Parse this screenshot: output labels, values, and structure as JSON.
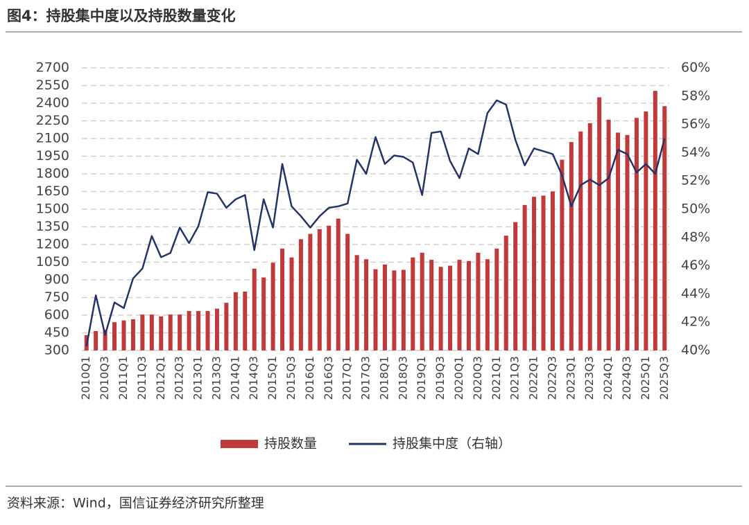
{
  "chart_data": {
    "type": "bar_line",
    "title": "图4：持股集中度以及持股数量变化",
    "source": "资料来源：Wind，国信证券经济研究所整理",
    "categories": [
      "2010Q1",
      null,
      "2010Q3",
      null,
      "2011Q1",
      null,
      "2011Q3",
      null,
      "2012Q1",
      null,
      "2012Q3",
      null,
      "2013Q1",
      null,
      "2013Q3",
      null,
      "2014Q1",
      null,
      "2014Q3",
      null,
      "2015Q1",
      null,
      "2015Q3",
      null,
      "2016Q1",
      null,
      "2016Q3",
      null,
      "2017Q1",
      null,
      "2017Q3",
      null,
      "2018Q1",
      null,
      "2018Q3",
      null,
      "2019Q1",
      null,
      "2019Q3",
      null,
      "2020Q1",
      null,
      "2020Q3",
      null,
      "2021Q1",
      null,
      "2021Q3",
      null,
      "2022Q1",
      null,
      "2022Q3",
      null,
      "2023Q1",
      null,
      "2023Q3",
      null,
      "2024Q1",
      null,
      "2024Q3",
      null,
      "2025Q1",
      null,
      "2025Q3"
    ],
    "series": [
      {
        "name": "持股数量",
        "type": "bar",
        "color": "#c0393b",
        "values": [
          430,
          465,
          475,
          540,
          555,
          565,
          605,
          605,
          590,
          605,
          605,
          635,
          635,
          635,
          655,
          705,
          795,
          800,
          995,
          920,
          1045,
          1165,
          1090,
          1245,
          1290,
          1330,
          1360,
          1420,
          1290,
          1110,
          1075,
          990,
          1030,
          980,
          985,
          1090,
          1130,
          1070,
          1010,
          1020,
          1070,
          1060,
          1130,
          1075,
          1165,
          1275,
          1390,
          1535,
          1605,
          1615,
          1650,
          1920,
          2070,
          2160,
          2230,
          2450,
          2260,
          2150,
          2130,
          2275,
          2330,
          2505,
          2375
        ]
      },
      {
        "name": "持股集中度（右轴）",
        "type": "line",
        "axis": "y2",
        "color": "#253468",
        "values": [
          40.3,
          43.9,
          41.1,
          43.4,
          43.0,
          45.1,
          45.8,
          48.1,
          46.6,
          46.9,
          48.7,
          47.6,
          48.8,
          51.2,
          51.1,
          50.1,
          50.7,
          51.0,
          47.1,
          50.7,
          48.7,
          53.2,
          50.2,
          49.5,
          48.7,
          49.5,
          50.1,
          50.2,
          50.4,
          53.5,
          52.5,
          55.1,
          53.2,
          53.8,
          53.7,
          53.3,
          51.0,
          55.4,
          55.5,
          53.4,
          52.2,
          54.3,
          53.9,
          56.8,
          57.7,
          57.4,
          54.9,
          53.1,
          54.3,
          54.1,
          53.9,
          52.4,
          50.2,
          51.7,
          52.1,
          51.7,
          52.2,
          54.2,
          53.9,
          52.6,
          53.2,
          52.5,
          55.0
        ]
      }
    ],
    "ylim": [
      300,
      2700
    ],
    "yticks": [
      300,
      450,
      600,
      750,
      900,
      1050,
      1200,
      1350,
      1500,
      1650,
      1800,
      1950,
      2100,
      2250,
      2400,
      2550,
      2700
    ],
    "y2lim": [
      40,
      60
    ],
    "y2ticks": [
      {
        "value": 40,
        "label": "40%"
      },
      {
        "value": 42,
        "label": "42%"
      },
      {
        "value": 44,
        "label": "44%"
      },
      {
        "value": 46,
        "label": "46%"
      },
      {
        "value": 48,
        "label": "48%"
      },
      {
        "value": 50,
        "label": "50%"
      },
      {
        "value": 52,
        "label": "52%"
      },
      {
        "value": 54,
        "label": "54%"
      },
      {
        "value": 56,
        "label": "56%"
      },
      {
        "value": 58,
        "label": "58%"
      },
      {
        "value": 60,
        "label": "60%"
      }
    ],
    "grid": true,
    "legend": "bottom"
  }
}
